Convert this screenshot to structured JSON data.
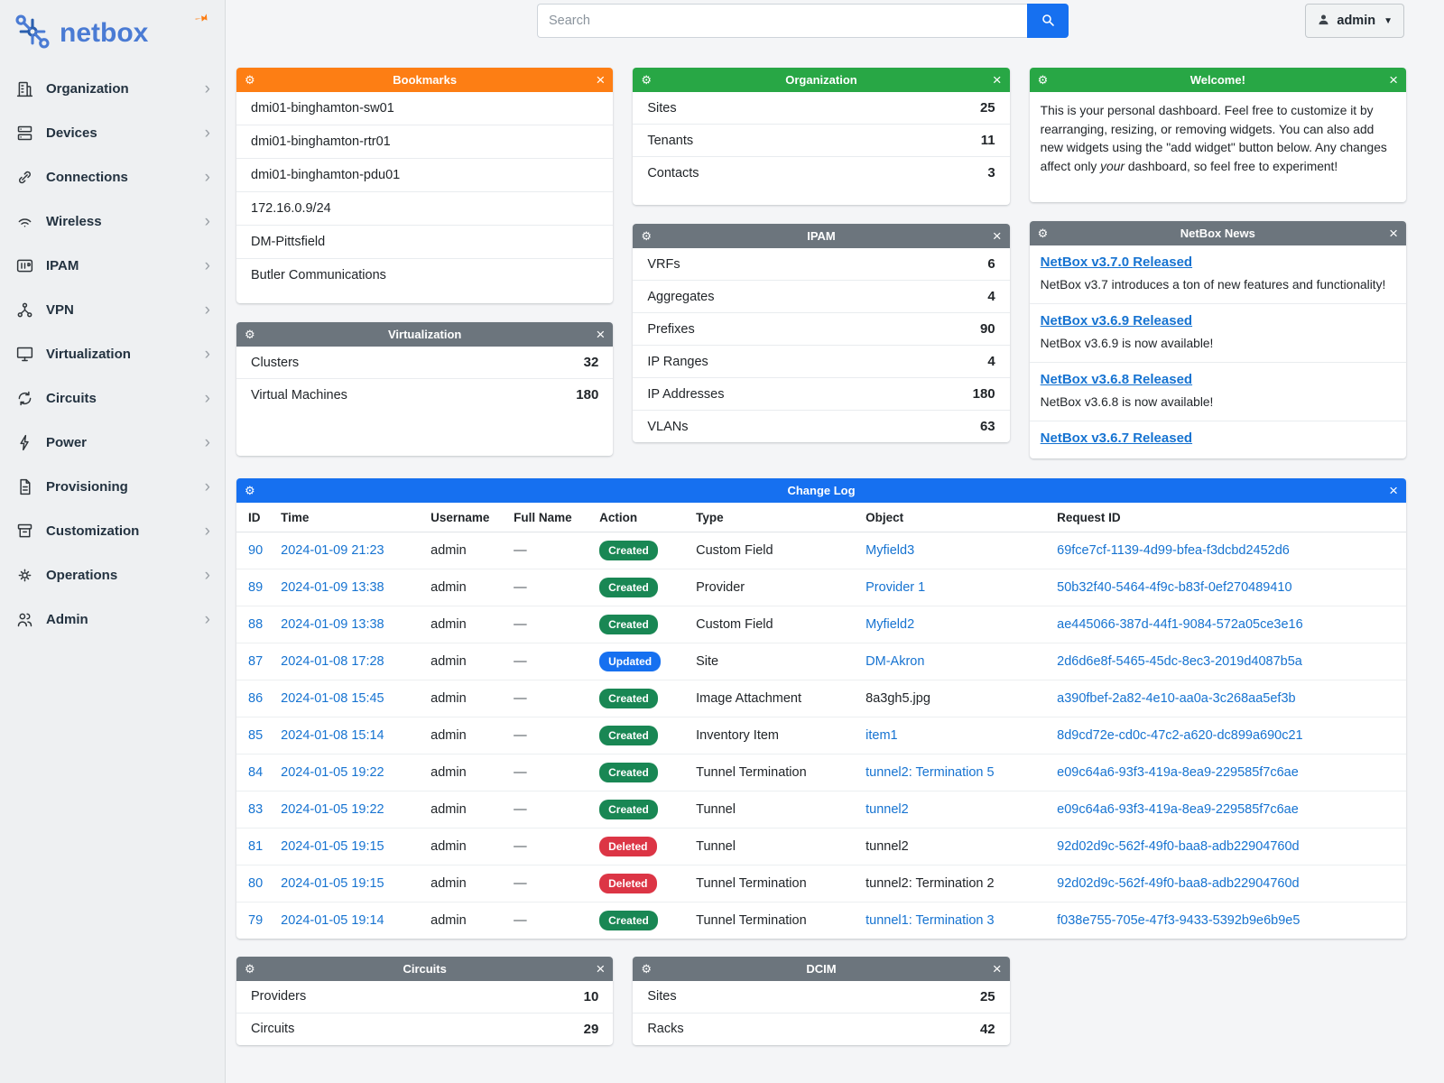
{
  "brand": {
    "name": "netbox"
  },
  "topbar": {
    "search_placeholder": "Search",
    "user_label": "admin"
  },
  "sidebar": {
    "items": [
      {
        "label": "Organization",
        "icon": "organization-icon"
      },
      {
        "label": "Devices",
        "icon": "devices-icon"
      },
      {
        "label": "Connections",
        "icon": "connections-icon"
      },
      {
        "label": "Wireless",
        "icon": "wireless-icon"
      },
      {
        "label": "IPAM",
        "icon": "ipam-icon"
      },
      {
        "label": "VPN",
        "icon": "vpn-icon"
      },
      {
        "label": "Virtualization",
        "icon": "virtualization-icon"
      },
      {
        "label": "Circuits",
        "icon": "circuits-icon"
      },
      {
        "label": "Power",
        "icon": "power-icon"
      },
      {
        "label": "Provisioning",
        "icon": "provisioning-icon"
      },
      {
        "label": "Customization",
        "icon": "customization-icon"
      },
      {
        "label": "Operations",
        "icon": "operations-icon"
      },
      {
        "label": "Admin",
        "icon": "admin-icon"
      }
    ]
  },
  "widgets": {
    "bookmarks": {
      "title": "Bookmarks",
      "items": [
        "dmi01-binghamton-sw01",
        "dmi01-binghamton-rtr01",
        "dmi01-binghamton-pdu01",
        "172.16.0.9/24",
        "DM-Pittsfield",
        "Butler Communications"
      ]
    },
    "organization": {
      "title": "Organization",
      "rows": [
        {
          "label": "Sites",
          "value": "25"
        },
        {
          "label": "Tenants",
          "value": "11"
        },
        {
          "label": "Contacts",
          "value": "3"
        }
      ]
    },
    "welcome": {
      "title": "Welcome!",
      "text_before": "This is your personal dashboard. Feel free to customize it by rearranging, resizing, or removing widgets. You can also add new widgets using the \"add widget\" button below. Any changes affect only ",
      "text_italic": "your",
      "text_after": " dashboard, so feel free to experiment!"
    },
    "virtualization": {
      "title": "Virtualization",
      "rows": [
        {
          "label": "Clusters",
          "value": "32"
        },
        {
          "label": "Virtual Machines",
          "value": "180"
        }
      ]
    },
    "ipam": {
      "title": "IPAM",
      "rows": [
        {
          "label": "VRFs",
          "value": "6"
        },
        {
          "label": "Aggregates",
          "value": "4"
        },
        {
          "label": "Prefixes",
          "value": "90"
        },
        {
          "label": "IP Ranges",
          "value": "4"
        },
        {
          "label": "IP Addresses",
          "value": "180"
        },
        {
          "label": "VLANs",
          "value": "63"
        }
      ]
    },
    "news": {
      "title": "NetBox News",
      "items": [
        {
          "title": "NetBox v3.7.0 Released",
          "desc": "NetBox v3.7 introduces a ton of new features and functionality!"
        },
        {
          "title": "NetBox v3.6.9 Released",
          "desc": "NetBox v3.6.9 is now available!"
        },
        {
          "title": "NetBox v3.6.8 Released",
          "desc": "NetBox v3.6.8 is now available!"
        },
        {
          "title": "NetBox v3.6.7 Released",
          "desc": ""
        }
      ]
    },
    "changelog": {
      "title": "Change Log",
      "columns": [
        "ID",
        "Time",
        "Username",
        "Full Name",
        "Action",
        "Type",
        "Object",
        "Request ID"
      ],
      "rows": [
        {
          "id": "90",
          "time": "2024-01-09 21:23",
          "username": "admin",
          "full_name": "—",
          "action": "Created",
          "type": "Custom Field",
          "object": "Myfield3",
          "object_link": true,
          "request_id": "69fce7cf-1139-4d99-bfea-f3dcbd2452d6"
        },
        {
          "id": "89",
          "time": "2024-01-09 13:38",
          "username": "admin",
          "full_name": "—",
          "action": "Created",
          "type": "Provider",
          "object": "Provider 1",
          "object_link": true,
          "request_id": "50b32f40-5464-4f9c-b83f-0ef270489410"
        },
        {
          "id": "88",
          "time": "2024-01-09 13:38",
          "username": "admin",
          "full_name": "—",
          "action": "Created",
          "type": "Custom Field",
          "object": "Myfield2",
          "object_link": true,
          "request_id": "ae445066-387d-44f1-9084-572a05ce3e16"
        },
        {
          "id": "87",
          "time": "2024-01-08 17:28",
          "username": "admin",
          "full_name": "—",
          "action": "Updated",
          "type": "Site",
          "object": "DM-Akron",
          "object_link": true,
          "request_id": "2d6d6e8f-5465-45dc-8ec3-2019d4087b5a"
        },
        {
          "id": "86",
          "time": "2024-01-08 15:45",
          "username": "admin",
          "full_name": "—",
          "action": "Created",
          "type": "Image Attachment",
          "object": "8a3gh5.jpg",
          "object_link": false,
          "request_id": "a390fbef-2a82-4e10-aa0a-3c268aa5ef3b"
        },
        {
          "id": "85",
          "time": "2024-01-08 15:14",
          "username": "admin",
          "full_name": "—",
          "action": "Created",
          "type": "Inventory Item",
          "object": "item1",
          "object_link": true,
          "request_id": "8d9cd72e-cd0c-47c2-a620-dc899a690c21"
        },
        {
          "id": "84",
          "time": "2024-01-05 19:22",
          "username": "admin",
          "full_name": "—",
          "action": "Created",
          "type": "Tunnel Termination",
          "object": "tunnel2: Termination 5",
          "object_link": true,
          "request_id": "e09c64a6-93f3-419a-8ea9-229585f7c6ae"
        },
        {
          "id": "83",
          "time": "2024-01-05 19:22",
          "username": "admin",
          "full_name": "—",
          "action": "Created",
          "type": "Tunnel",
          "object": "tunnel2",
          "object_link": true,
          "request_id": "e09c64a6-93f3-419a-8ea9-229585f7c6ae"
        },
        {
          "id": "81",
          "time": "2024-01-05 19:15",
          "username": "admin",
          "full_name": "—",
          "action": "Deleted",
          "type": "Tunnel",
          "object": "tunnel2",
          "object_link": false,
          "request_id": "92d02d9c-562f-49f0-baa8-adb22904760d"
        },
        {
          "id": "80",
          "time": "2024-01-05 19:15",
          "username": "admin",
          "full_name": "—",
          "action": "Deleted",
          "type": "Tunnel Termination",
          "object": "tunnel2: Termination 2",
          "object_link": false,
          "request_id": "92d02d9c-562f-49f0-baa8-adb22904760d"
        },
        {
          "id": "79",
          "time": "2024-01-05 19:14",
          "username": "admin",
          "full_name": "—",
          "action": "Created",
          "type": "Tunnel Termination",
          "object": "tunnel1: Termination 3",
          "object_link": true,
          "request_id": "f038e755-705e-47f3-9433-5392b9e6b9e5"
        }
      ]
    },
    "circuits": {
      "title": "Circuits",
      "rows": [
        {
          "label": "Providers",
          "value": "10"
        },
        {
          "label": "Circuits",
          "value": "29"
        }
      ]
    },
    "dcim": {
      "title": "DCIM",
      "rows": [
        {
          "label": "Sites",
          "value": "25"
        },
        {
          "label": "Racks",
          "value": "42"
        }
      ]
    }
  },
  "colors": {
    "bookmarks_header": "#fd7e14",
    "green_header": "#28a745",
    "gray_header": "#6c757d",
    "blue_header": "#1670f0",
    "link": "#1673d1",
    "badge_created": "#198754",
    "badge_updated": "#1670f0",
    "badge_deleted": "#dc3545",
    "brand_blue": "#4a7bd4"
  }
}
